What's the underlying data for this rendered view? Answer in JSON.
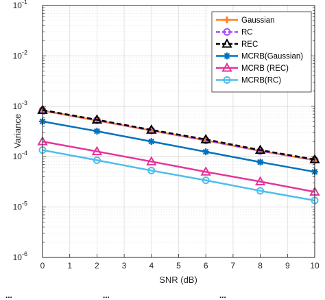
{
  "chart_data": {
    "type": "line",
    "title": "",
    "xlabel": "SNR (dB)",
    "ylabel": "Variance",
    "x": [
      0,
      2,
      4,
      6,
      8,
      10
    ],
    "xticks": [
      "0",
      "1",
      "2",
      "3",
      "4",
      "5",
      "6",
      "7",
      "8",
      "9",
      "10"
    ],
    "xlim": [
      0,
      10
    ],
    "yscale": "log",
    "ylim": [
      1e-06,
      0.1
    ],
    "yticks": [
      {
        "base": "10",
        "exp": "-6"
      },
      {
        "base": "10",
        "exp": "-5"
      },
      {
        "base": "10",
        "exp": "-4"
      },
      {
        "base": "10",
        "exp": "-3"
      },
      {
        "base": "10",
        "exp": "-2"
      },
      {
        "base": "10",
        "exp": "-1"
      }
    ],
    "grid": true,
    "legend_position": "top-right",
    "series": [
      {
        "name": "Gaussian",
        "color": "#FF7F27",
        "marker": "plus",
        "dash": "solid",
        "values": [
          0.00082,
          0.00052,
          0.00033,
          0.00021,
          0.00013,
          8.5e-05
        ]
      },
      {
        "name": "RC",
        "color": "#A64DFF",
        "marker": "circle",
        "dash": "dashed",
        "values": [
          0.00083,
          0.00053,
          0.00033,
          0.00021,
          0.00013,
          8.6e-05
        ]
      },
      {
        "name": "REC",
        "color": "#000000",
        "marker": "triangle",
        "dash": "dashed",
        "values": [
          0.00084,
          0.00054,
          0.00034,
          0.00022,
          0.000135,
          8.8e-05
        ]
      },
      {
        "name": "MCRB(Gaussian)",
        "color": "#0072BD",
        "marker": "star",
        "dash": "solid",
        "values": [
          0.0005,
          0.00032,
          0.0002,
          0.000125,
          7.8e-05,
          5e-05
        ]
      },
      {
        "name": "MCRB (REC)",
        "color": "#E6339A",
        "marker": "triangle",
        "dash": "solid",
        "values": [
          0.0002,
          0.000127,
          8e-05,
          5e-05,
          3.2e-05,
          2e-05
        ]
      },
      {
        "name": "MCRB(RC)",
        "color": "#4DBEEE",
        "marker": "circle",
        "dash": "solid",
        "values": [
          0.000135,
          8.5e-05,
          5.3e-05,
          3.4e-05,
          2.1e-05,
          1.35e-05
        ]
      }
    ]
  },
  "caption_fragments": [
    "...",
    "...",
    "..."
  ]
}
